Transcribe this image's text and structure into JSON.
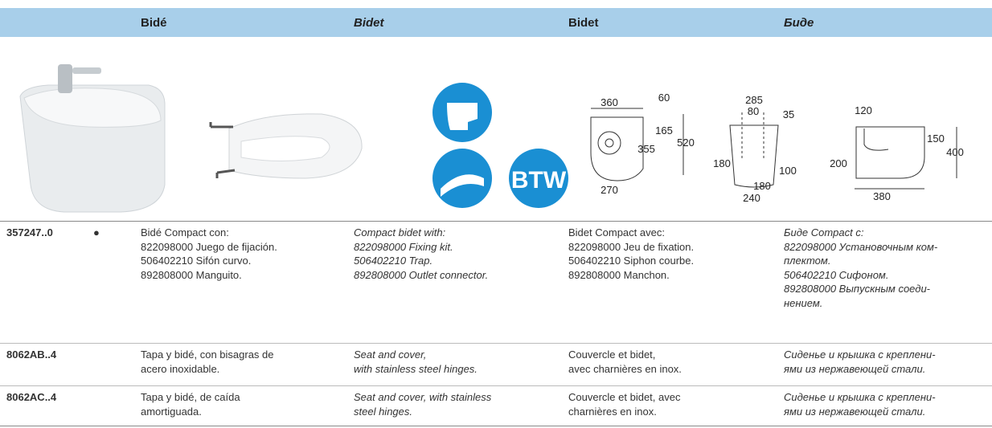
{
  "header": {
    "columns": [
      "Bidé",
      "Bidet",
      "Bidet",
      "Биде"
    ]
  },
  "icons": {
    "btw": "BTW"
  },
  "drawings": [
    {
      "labels": [
        "360",
        "60",
        "165",
        "355",
        "520",
        "270"
      ]
    },
    {
      "labels": [
        "285",
        "80",
        "35",
        "180",
        "100",
        "180",
        "240"
      ]
    },
    {
      "labels": [
        "120",
        "150",
        "400",
        "200",
        "380"
      ]
    }
  ],
  "table": {
    "rows": [
      {
        "code": "357247..0",
        "mark": "●",
        "es": [
          "Bidé Compact con:",
          "822098000 Juego de fijación.",
          "506402210 Sifón curvo.",
          "892808000 Manguito."
        ],
        "en": [
          "Compact bidet with:",
          "822098000 Fixing kit.",
          "506402210 Trap.",
          "892808000 Outlet connector."
        ],
        "fr": [
          "Bidet Compact avec:",
          "822098000 Jeu de fixation.",
          "506402210 Siphon courbe.",
          "892808000 Manchon."
        ],
        "ru": [
          "Биде Compact с:",
          "822098000 Установочным ком-",
          "плектом.",
          "506402210 Сифоном.",
          "892808000 Выпускным соеди-",
          "нением."
        ]
      },
      {
        "code": "8062AB..4",
        "es": [
          "Tapa y bidé, con bisagras de",
          "acero inoxidable."
        ],
        "en": [
          "Seat and cover,",
          "with stainless steel hinges."
        ],
        "fr": [
          "Couvercle et bidet,",
          "avec charnières en inox."
        ],
        "ru": [
          "Сиденье и крышка с креплени-",
          "ями из нержавеющей стали."
        ]
      },
      {
        "code": "8062AC..4",
        "es": [
          "Tapa y bidé, de caída",
          "amortiguada."
        ],
        "en": [
          "Seat and cover, with stainless",
          "steel hinges."
        ],
        "fr": [
          "Couvercle et bidet, avec",
          "charnières en inox."
        ],
        "ru": [
          "Сиденье и крышка с креплени-",
          "ями из нержавеющей стали."
        ]
      }
    ]
  }
}
